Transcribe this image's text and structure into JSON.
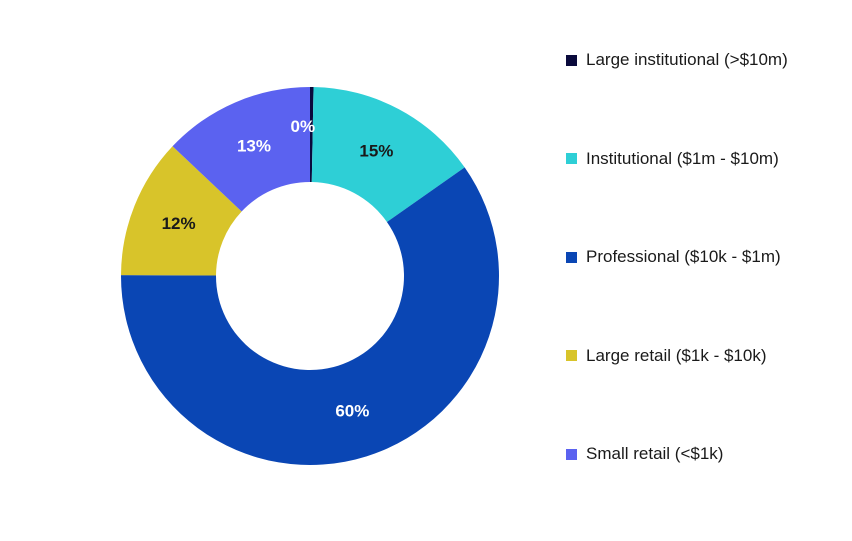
{
  "chart_data": {
    "type": "pie",
    "variant": "donut",
    "categories": [
      "Large institutional (>$10m)",
      "Institutional ($1m - $10m)",
      "Professional ($10k - $1m)",
      "Large retail ($1k - $10k)",
      "Small retail (<$1k)"
    ],
    "values": [
      0.3,
      15,
      60,
      12,
      13
    ],
    "data_labels": [
      "0%",
      "15%",
      "60%",
      "12%",
      "13%"
    ],
    "colors": [
      "#0a0a3c",
      "#2ecfd6",
      "#0a46b4",
      "#d8c42a",
      "#5b62f0"
    ],
    "label_colors": [
      "#ffffff",
      "#1a1a1a",
      "#ffffff",
      "#1a1a1a",
      "#ffffff"
    ],
    "legend_position": "right"
  }
}
